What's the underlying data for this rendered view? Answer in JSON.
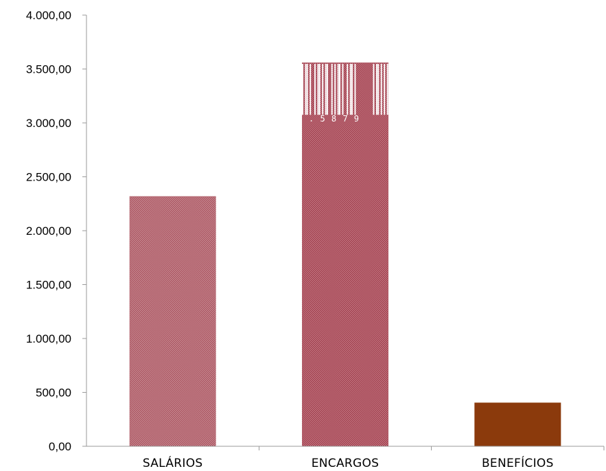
{
  "chart_data": {
    "type": "bar",
    "categories": [
      "SALÁRIOS",
      "ENCARGOS",
      "BENEFÍCIOS"
    ],
    "values": [
      2320,
      3560,
      405
    ],
    "bar_colors": [
      "#c0707a",
      "#b2505e",
      "#8b3a0c"
    ],
    "bar_patterns": [
      "dotted",
      "dotted",
      "solid"
    ],
    "ylim": [
      0,
      4000
    ],
    "yticks": [
      0,
      500,
      1000,
      1500,
      2000,
      2500,
      3000,
      3500,
      4000
    ],
    "ytick_labels": [
      "0,00",
      "500,00",
      "1.000,00",
      "1.500,00",
      "2.000,00",
      "2.500,00",
      "3.000,00",
      "3.500,00",
      "4.000,00"
    ],
    "grid": false,
    "legend": "none",
    "overlay_text": ". 5 8 7   9"
  }
}
